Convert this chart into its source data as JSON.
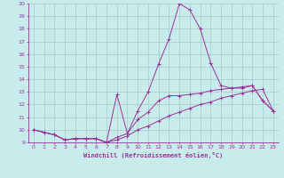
{
  "xlabel": "Windchill (Refroidissement éolien,°C)",
  "background_color": "#c8ecec",
  "grid_color": "#a0cccc",
  "line_color": "#993399",
  "xlim": [
    -0.5,
    23.5
  ],
  "ylim": [
    9,
    20
  ],
  "yticks": [
    9,
    10,
    11,
    12,
    13,
    14,
    15,
    16,
    17,
    18,
    19,
    20
  ],
  "xticks": [
    0,
    1,
    2,
    3,
    4,
    5,
    6,
    7,
    8,
    9,
    10,
    11,
    12,
    13,
    14,
    15,
    16,
    17,
    18,
    19,
    20,
    21,
    22,
    23
  ],
  "line1_x": [
    0,
    1,
    2,
    3,
    4,
    5,
    6,
    7,
    8,
    9,
    10,
    11,
    12,
    13,
    14,
    15,
    16,
    17,
    18,
    19,
    20,
    21,
    22,
    23
  ],
  "line1_y": [
    10.0,
    9.8,
    9.6,
    9.2,
    9.3,
    9.3,
    9.3,
    9.0,
    9.4,
    9.7,
    10.8,
    11.4,
    12.3,
    12.7,
    12.7,
    12.8,
    12.9,
    13.1,
    13.2,
    13.3,
    13.4,
    13.5,
    12.3,
    11.5
  ],
  "line2_x": [
    0,
    1,
    2,
    3,
    4,
    5,
    6,
    7,
    8,
    9,
    10,
    11,
    12,
    13,
    14,
    15,
    16,
    17,
    18,
    19,
    20,
    21,
    22,
    23
  ],
  "line2_y": [
    10.0,
    9.8,
    9.6,
    9.2,
    9.3,
    9.3,
    9.3,
    9.0,
    12.8,
    9.7,
    11.5,
    13.0,
    15.2,
    17.2,
    20.0,
    19.5,
    18.0,
    15.3,
    13.5,
    13.3,
    13.3,
    13.5,
    12.3,
    11.5
  ],
  "line3_x": [
    0,
    1,
    2,
    3,
    4,
    5,
    6,
    7,
    8,
    9,
    10,
    11,
    12,
    13,
    14,
    15,
    16,
    17,
    18,
    19,
    20,
    21,
    22,
    23
  ],
  "line3_y": [
    10.0,
    9.8,
    9.6,
    9.2,
    9.3,
    9.3,
    9.3,
    9.0,
    9.2,
    9.5,
    10.0,
    10.3,
    10.7,
    11.1,
    11.4,
    11.7,
    12.0,
    12.2,
    12.5,
    12.7,
    12.9,
    13.1,
    13.2,
    11.5
  ]
}
